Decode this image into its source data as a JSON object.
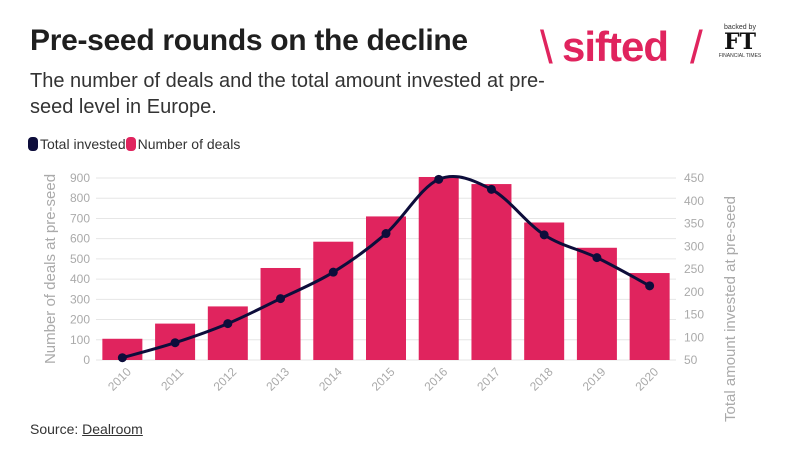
{
  "header": {
    "title": "Pre-seed rounds on the decline",
    "subtitle": "The number of deals and the total amount invested at pre-seed level in Europe."
  },
  "logo": {
    "brand": "sifted",
    "backed_by": "backed by",
    "ft_mark": "FT",
    "ft_name": "FINANCIAL TIMES"
  },
  "source": {
    "label": "Source:",
    "link": "Dealroom"
  },
  "colors": {
    "bar": "#e0245e",
    "line": "#0d0d3b",
    "grid": "#e6e6e6",
    "brand": "#e0245e"
  },
  "chart_data": {
    "type": "bar",
    "categories": [
      "2010",
      "2011",
      "2012",
      "2013",
      "2014",
      "2015",
      "2016",
      "2017",
      "2018",
      "2019",
      "2020"
    ],
    "series": [
      {
        "name": "Number of deals",
        "type": "bar",
        "axis": "left",
        "values": [
          105,
          180,
          265,
          455,
          585,
          710,
          905,
          870,
          680,
          555,
          430
        ]
      },
      {
        "name": "Total invested",
        "type": "line",
        "axis": "right",
        "values": [
          55,
          88,
          130,
          185,
          243,
          328,
          447,
          425,
          325,
          275,
          213
        ]
      }
    ],
    "ylabel": "Number of deals at pre-seed",
    "y2label": "Total amount invested at pre-seed",
    "ylim": [
      0,
      900
    ],
    "y2lim": [
      50,
      450
    ],
    "yticks": [
      "0",
      "100",
      "200",
      "300",
      "400",
      "500",
      "600",
      "700",
      "800",
      "900"
    ],
    "y2ticks": [
      "50",
      "100",
      "150",
      "200",
      "250",
      "300",
      "350",
      "400",
      "450"
    ],
    "legend_order": [
      "Total invested",
      "Number of deals"
    ],
    "legend_position": "top-left",
    "grid": true
  }
}
